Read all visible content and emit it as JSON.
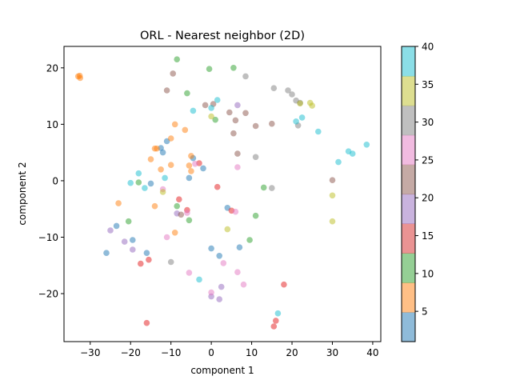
{
  "chart_data": {
    "type": "scatter",
    "title": "ORL - Nearest neighbor (2D)",
    "xlabel": "component 1",
    "ylabel": "component 2",
    "xlim": [
      -36.5,
      42
    ],
    "ylim": [
      -28.5,
      23.8
    ],
    "xticks": [
      -30,
      -20,
      -10,
      0,
      10,
      20,
      30,
      40
    ],
    "yticks": [
      -20,
      -10,
      0,
      10,
      20
    ],
    "grid": false,
    "colorbar": {
      "range": [
        1,
        40
      ],
      "ticks": [
        5,
        10,
        15,
        20,
        25,
        30,
        35,
        40
      ],
      "colormap": "tab10",
      "bins": [
        {
          "range": [
            1,
            4.9
          ],
          "color": "#1f77b4"
        },
        {
          "range": [
            4.9,
            8.8
          ],
          "color": "#ff7f0e"
        },
        {
          "range": [
            8.8,
            12.7
          ],
          "color": "#2ca02c"
        },
        {
          "range": [
            12.7,
            16.6
          ],
          "color": "#d62728"
        },
        {
          "range": [
            16.6,
            20.5
          ],
          "color": "#9467bd"
        },
        {
          "range": [
            20.5,
            24.4
          ],
          "color": "#8c564b"
        },
        {
          "range": [
            24.4,
            28.3
          ],
          "color": "#e377c2"
        },
        {
          "range": [
            28.3,
            32.2
          ],
          "color": "#7f7f7f"
        },
        {
          "range": [
            32.2,
            36.1
          ],
          "color": "#bcbd22"
        },
        {
          "range": [
            36.1,
            40
          ],
          "color": "#17becf"
        }
      ]
    },
    "marker_alpha": 0.5,
    "series": [
      {
        "color_group": 1,
        "color": "#1f77b4",
        "points": [
          [
            -26,
            -12.8
          ],
          [
            -23.5,
            -8
          ],
          [
            -19.5,
            -10.5
          ],
          [
            -16,
            -12.8
          ],
          [
            -12.5,
            5.8
          ],
          [
            -12,
            5
          ],
          [
            -11,
            7
          ],
          [
            -5.5,
            0.5
          ],
          [
            -4.5,
            4
          ],
          [
            -2,
            2.2
          ],
          [
            0,
            -12
          ],
          [
            2,
            -13.3
          ],
          [
            4,
            -4.8
          ],
          [
            7,
            -11.8
          ],
          [
            -15,
            -0.5
          ]
        ]
      },
      {
        "color_group": 5,
        "color": "#ff7f0e",
        "points": [
          [
            -33,
            18.5
          ],
          [
            -32.5,
            18.2
          ],
          [
            -32.6,
            18.6
          ],
          [
            -23,
            -4
          ],
          [
            -15,
            3.8
          ],
          [
            -14,
            5.7
          ],
          [
            -13.5,
            5.7
          ],
          [
            -14,
            -4.5
          ],
          [
            -12.5,
            2
          ],
          [
            -10,
            2.8
          ],
          [
            -10,
            7.5
          ],
          [
            -9,
            10
          ],
          [
            -9,
            -9.2
          ],
          [
            -6.5,
            9
          ],
          [
            -5.5,
            2.7
          ],
          [
            -5,
            1.7
          ],
          [
            -5,
            4.4
          ]
        ]
      },
      {
        "color_group": 10,
        "color": "#2ca02c",
        "points": [
          [
            -8.5,
            21.5
          ],
          [
            -6,
            15.5
          ],
          [
            -0.5,
            19.8
          ],
          [
            5.5,
            20
          ],
          [
            1,
            10.8
          ],
          [
            -18,
            -0.3
          ],
          [
            -20.5,
            -7.2
          ],
          [
            -8.5,
            -4.5
          ],
          [
            -5.5,
            -7
          ],
          [
            9.5,
            -10.5
          ],
          [
            11,
            -6.2
          ],
          [
            13,
            -1.2
          ]
        ]
      },
      {
        "color_group": 15,
        "color": "#e41a1c",
        "points": [
          [
            -17.5,
            -14.7
          ],
          [
            -15.5,
            -14
          ],
          [
            -16,
            -25.2
          ],
          [
            -8,
            -3.3
          ],
          [
            -6,
            -5.2
          ],
          [
            -3,
            3.1
          ],
          [
            1.5,
            -1.1
          ],
          [
            5,
            -5.3
          ],
          [
            15.5,
            -25.8
          ],
          [
            16,
            -24.8
          ],
          [
            18,
            -18.4
          ]
        ]
      },
      {
        "color_group": 20,
        "color": "#9467bd",
        "points": [
          [
            -25,
            -8.8
          ],
          [
            -21.5,
            -10.8
          ],
          [
            -19.5,
            -12.2
          ],
          [
            -8.5,
            -5.8
          ],
          [
            0,
            -20.5
          ],
          [
            2,
            -21
          ],
          [
            2.5,
            -18.8
          ],
          [
            6.5,
            13.4
          ]
        ]
      },
      {
        "color_group": 22,
        "color": "#8c564b",
        "points": [
          [
            -11,
            16
          ],
          [
            -9.5,
            19
          ],
          [
            -7.5,
            -6
          ],
          [
            -1.5,
            13.4
          ],
          [
            0.5,
            13.6
          ],
          [
            4.5,
            12.1
          ],
          [
            5.5,
            8.4
          ],
          [
            6,
            10.7
          ],
          [
            6.5,
            4.8
          ],
          [
            8.5,
            12
          ],
          [
            11,
            9.7
          ],
          [
            15,
            10.1
          ],
          [
            30,
            0.1
          ]
        ]
      },
      {
        "color_group": 25,
        "color": "#e377c2",
        "points": [
          [
            -12,
            -1.5
          ],
          [
            -11,
            -10
          ],
          [
            -6,
            -5.7
          ],
          [
            -5.5,
            -16.3
          ],
          [
            -4,
            3
          ],
          [
            0,
            -19.8
          ],
          [
            3,
            -14.6
          ],
          [
            6,
            -5.5
          ],
          [
            6.5,
            2.4
          ],
          [
            6.5,
            -16.2
          ],
          [
            8,
            -18.4
          ]
        ]
      },
      {
        "color_group": 30,
        "color": "#7f7f7f",
        "points": [
          [
            -10,
            -14.4
          ],
          [
            8.5,
            18.5
          ],
          [
            11,
            4.2
          ],
          [
            15,
            -1.3
          ],
          [
            15.5,
            16.4
          ],
          [
            19,
            16
          ],
          [
            20,
            15.3
          ],
          [
            21,
            14.2
          ],
          [
            21.5,
            9.8
          ],
          [
            22,
            13.8
          ]
        ]
      },
      {
        "color_group": 35,
        "color": "#bcbd22",
        "points": [
          [
            -12,
            -2
          ],
          [
            0,
            11.4
          ],
          [
            4,
            -8.6
          ],
          [
            22,
            13.7
          ],
          [
            24.5,
            13.8
          ],
          [
            25,
            13.3
          ],
          [
            30,
            -2.6
          ],
          [
            30,
            -7.2
          ]
        ]
      },
      {
        "color_group": 40,
        "color": "#17becf",
        "points": [
          [
            -18,
            1.3
          ],
          [
            -20,
            -0.4
          ],
          [
            -16.5,
            -1.3
          ],
          [
            -11.5,
            0.5
          ],
          [
            -4.5,
            12.4
          ],
          [
            0,
            12.9
          ],
          [
            1.5,
            14.3
          ],
          [
            -3,
            -17.5
          ],
          [
            16.5,
            -23.5
          ],
          [
            21,
            10.5
          ],
          [
            22.5,
            11.2
          ],
          [
            26.5,
            8.7
          ],
          [
            31.5,
            3.3
          ],
          [
            34,
            5.2
          ],
          [
            35,
            4.8
          ],
          [
            38.5,
            6.4
          ]
        ]
      }
    ]
  }
}
